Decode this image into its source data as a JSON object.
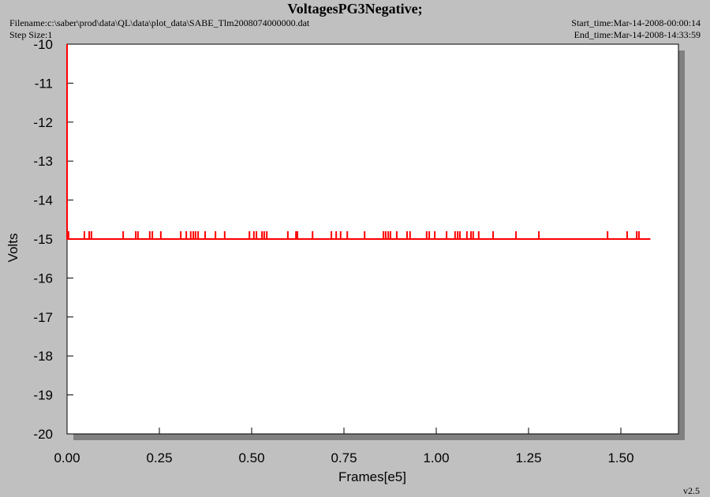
{
  "chart_data": {
    "type": "line",
    "title": "VoltagesPG3Negative;",
    "filename": "Filename:c:\\saber\\prod\\data\\QL\\data\\plot_data\\SABE_Tlm2008074000000.dat",
    "step_size": "Step Size:1",
    "start_time": "Start_time:Mar-14-2008-00:00:14",
    "end_time": "End_time:Mar-14-2008-14:33:59",
    "x_label": "Frames[e5]",
    "y_label": "Volts",
    "version": "v2.5",
    "color": "#ff0000",
    "xlim": [
      0,
      1.656
    ],
    "ylim": [
      -20,
      -10
    ],
    "xticks": [
      {
        "value": 0,
        "label": "0.00"
      },
      {
        "value": 0.25,
        "label": "0.25"
      },
      {
        "value": 0.5,
        "label": "0.50"
      },
      {
        "value": 0.75,
        "label": "0.75"
      },
      {
        "value": 1,
        "label": "1.00"
      },
      {
        "value": 1.25,
        "label": "1.25"
      },
      {
        "value": 1.5,
        "label": "1.50"
      }
    ],
    "yticks": [
      -10,
      -11,
      -12,
      -13,
      -14,
      -15,
      -16,
      -17,
      -18,
      -19,
      -20
    ],
    "x": [
      0,
      0,
      0.004,
      0.004,
      0.004,
      0.047,
      0.047,
      0.047,
      0.06,
      0.06,
      0.06,
      0.066,
      0.066,
      0.066,
      0.152,
      0.152,
      0.152,
      0.186,
      0.186,
      0.186,
      0.192,
      0.192,
      0.192,
      0.224,
      0.224,
      0.224,
      0.231,
      0.231,
      0.231,
      0.254,
      0.254,
      0.254,
      0.308,
      0.308,
      0.308,
      0.323,
      0.323,
      0.323,
      0.335,
      0.335,
      0.335,
      0.342,
      0.342,
      0.342,
      0.348,
      0.348,
      0.348,
      0.355,
      0.355,
      0.355,
      0.374,
      0.374,
      0.374,
      0.402,
      0.402,
      0.402,
      0.427,
      0.427,
      0.427,
      0.494,
      0.494,
      0.494,
      0.506,
      0.506,
      0.506,
      0.513,
      0.513,
      0.513,
      0.528,
      0.528,
      0.528,
      0.534,
      0.534,
      0.534,
      0.541,
      0.541,
      0.541,
      0.598,
      0.598,
      0.598,
      0.62,
      0.62,
      0.62,
      0.624,
      0.624,
      0.624,
      0.665,
      0.665,
      0.665,
      0.716,
      0.716,
      0.716,
      0.729,
      0.729,
      0.729,
      0.741,
      0.741,
      0.741,
      0.759,
      0.759,
      0.759,
      0.806,
      0.806,
      0.806,
      0.857,
      0.857,
      0.857,
      0.863,
      0.863,
      0.863,
      0.87,
      0.87,
      0.87,
      0.876,
      0.876,
      0.876,
      0.893,
      0.893,
      0.893,
      0.921,
      0.921,
      0.921,
      0.929,
      0.929,
      0.929,
      0.974,
      0.974,
      0.974,
      0.981,
      0.981,
      0.981,
      0.996,
      0.996,
      0.996,
      1.028,
      1.028,
      1.028,
      1.051,
      1.051,
      1.051,
      1.058,
      1.058,
      1.058,
      1.064,
      1.064,
      1.064,
      1.083,
      1.083,
      1.083,
      1.094,
      1.094,
      1.094,
      1.1,
      1.1,
      1.1,
      1.115,
      1.115,
      1.115,
      1.154,
      1.154,
      1.154,
      1.216,
      1.216,
      1.216,
      1.278,
      1.278,
      1.278,
      1.464,
      1.464,
      1.464,
      1.517,
      1.517,
      1.517,
      1.543,
      1.543,
      1.543,
      1.549,
      1.549,
      1.549,
      1.58
    ],
    "values": [
      -10,
      -15,
      -15,
      -14.8,
      -15,
      -15,
      -14.8,
      -15,
      -15,
      -14.8,
      -15,
      -15,
      -14.8,
      -15,
      -15,
      -14.8,
      -15,
      -15,
      -14.8,
      -15,
      -15,
      -14.8,
      -15,
      -15,
      -14.8,
      -15,
      -15,
      -14.8,
      -15,
      -15,
      -14.8,
      -15,
      -15,
      -14.8,
      -15,
      -15,
      -14.8,
      -15,
      -15,
      -14.8,
      -15,
      -15,
      -14.8,
      -15,
      -15,
      -14.8,
      -15,
      -15,
      -14.8,
      -15,
      -15,
      -14.8,
      -15,
      -15,
      -14.8,
      -15,
      -15,
      -14.8,
      -15,
      -15,
      -14.8,
      -15,
      -15,
      -14.8,
      -15,
      -15,
      -14.8,
      -15,
      -15,
      -14.8,
      -15,
      -15,
      -14.8,
      -15,
      -15,
      -14.8,
      -15,
      -15,
      -14.8,
      -15,
      -15,
      -14.8,
      -15,
      -15,
      -14.8,
      -15,
      -15,
      -14.8,
      -15,
      -15,
      -14.8,
      -15,
      -15,
      -14.8,
      -15,
      -15,
      -14.8,
      -15,
      -15,
      -14.8,
      -15,
      -15,
      -14.8,
      -15,
      -15,
      -14.8,
      -15,
      -15,
      -14.8,
      -15,
      -15,
      -14.8,
      -15,
      -15,
      -14.8,
      -15,
      -15,
      -14.8,
      -15,
      -15,
      -14.8,
      -15,
      -15,
      -14.8,
      -15,
      -15,
      -14.8,
      -15,
      -15,
      -14.8,
      -15,
      -15,
      -14.8,
      -15,
      -15,
      -14.8,
      -15,
      -15,
      -14.8,
      -15,
      -15,
      -14.8,
      -15,
      -15,
      -14.8,
      -15,
      -15,
      -14.8,
      -15,
      -15,
      -14.8,
      -15,
      -15,
      -14.8,
      -15,
      -15,
      -14.8,
      -15,
      -15,
      -14.8,
      -15,
      -15,
      -14.8,
      -15,
      -15,
      -14.8,
      -15,
      -15,
      -14.8,
      -15,
      -15,
      -14.8,
      -15,
      -15,
      -14.8,
      -15,
      -15,
      -14.8,
      -15,
      -15
    ]
  }
}
